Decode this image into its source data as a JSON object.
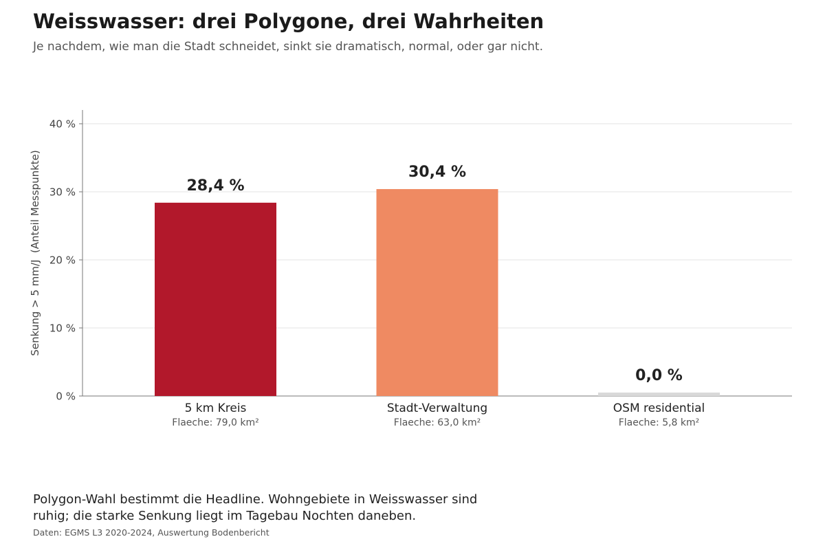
{
  "title": "Weisswasser: drei Polygone, drei Wahrheiten",
  "subtitle": "Je nachdem, wie man die Stadt schneidet, sinkt sie dramatisch, normal, oder gar nicht.",
  "footnote": "Polygon-Wahl bestimmt die Headline. Wohngebiete in Weisswasser sind ruhig; die starke Senkung liegt im Tagebau Nochten daneben.",
  "source": "Daten: EGMS L3 2020-2024, Auswertung Bodenbericht",
  "chart_data": {
    "type": "bar",
    "ylabel": "Senkung > 5 mm/J  (Anteil Messpunkte)",
    "ylim": [
      0,
      42
    ],
    "yticks": [
      0,
      10,
      20,
      30,
      40
    ],
    "ytick_labels": [
      "0 %",
      "10 %",
      "20 %",
      "30 %",
      "40 %"
    ],
    "grid": true,
    "categories": [
      "5 km Kreis",
      "Stadt-Verwaltung",
      "OSM residential"
    ],
    "sublabels": [
      "Flaeche: 79,0 km²",
      "Flaeche: 63,0 km²",
      "Flaeche: 5,8 km²"
    ],
    "values": [
      28.4,
      30.4,
      0.0
    ],
    "value_labels": [
      "28,4 %",
      "30,4 %",
      "0,0 %"
    ],
    "colors": [
      "#b2182b",
      "#ef8a62",
      "#d9d9d9"
    ]
  }
}
